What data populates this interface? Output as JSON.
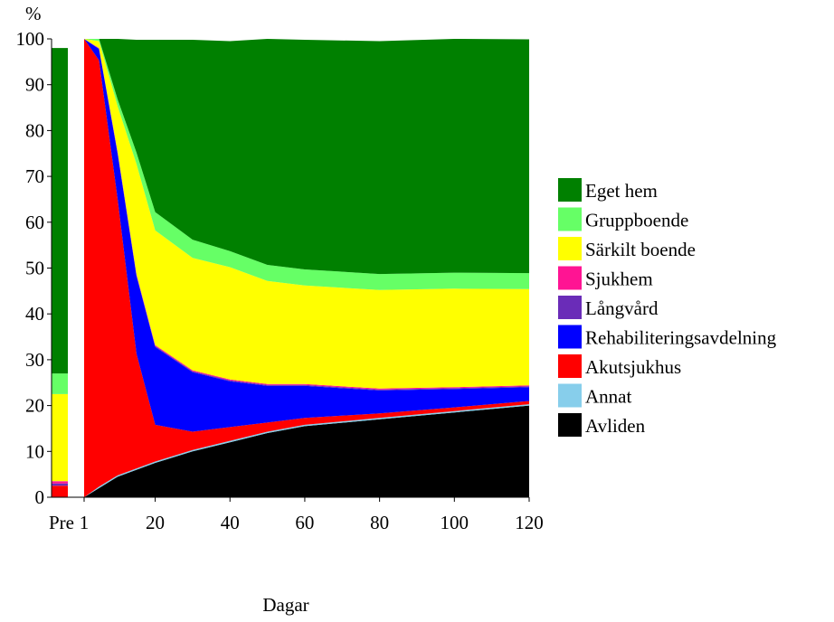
{
  "chart_data": {
    "type": "area",
    "stacked": true,
    "ylabel": "%",
    "xlabel": "Dagar",
    "ylim": [
      0,
      100
    ],
    "xlim": [
      1,
      120
    ],
    "yticks": [
      "0",
      "10",
      "20",
      "30",
      "40",
      "50",
      "60",
      "70",
      "80",
      "90",
      "100"
    ],
    "xticks": [
      "1",
      "20",
      "40",
      "60",
      "80",
      "100",
      "120"
    ],
    "pre_label": "Pre",
    "legend_position": "right",
    "series": [
      {
        "name": "Avliden",
        "color": "#000000",
        "pre": 0,
        "x": [
          1,
          5,
          10,
          15,
          20,
          30,
          40,
          50,
          60,
          80,
          100,
          120
        ],
        "values": [
          0,
          2,
          4.5,
          6,
          7.5,
          10,
          12,
          14,
          15.5,
          17,
          18.5,
          20
        ]
      },
      {
        "name": "Annat",
        "color": "#87ceeb",
        "pre": 0,
        "x": [
          1,
          5,
          10,
          15,
          20,
          30,
          40,
          50,
          60,
          80,
          100,
          120
        ],
        "values": [
          0,
          0.3,
          0.3,
          0.3,
          0.3,
          0.3,
          0.3,
          0.3,
          0.3,
          0.3,
          0.3,
          0.3
        ]
      },
      {
        "name": "Akutsjukhus",
        "color": "#ff0000",
        "pre": 2.5,
        "x": [
          1,
          5,
          10,
          15,
          20,
          30,
          40,
          50,
          60,
          80,
          100,
          120
        ],
        "values": [
          100,
          93,
          60,
          25,
          8,
          4,
          3,
          2,
          1.5,
          1,
          0.8,
          0.7
        ]
      },
      {
        "name": "Rehabiliteringsavdelning",
        "color": "#0000ff",
        "pre": 0,
        "x": [
          1,
          5,
          10,
          15,
          20,
          30,
          40,
          50,
          60,
          80,
          100,
          120
        ],
        "values": [
          0,
          2.5,
          10,
          17,
          17,
          13,
          10,
          8,
          7,
          5,
          4,
          3
        ]
      },
      {
        "name": "Långvård",
        "color": "#6a2cb8",
        "pre": 0.5,
        "x": [
          1,
          5,
          10,
          15,
          20,
          30,
          40,
          50,
          60,
          80,
          100,
          120
        ],
        "values": [
          0,
          0.1,
          0.2,
          0.2,
          0.2,
          0.2,
          0.2,
          0.2,
          0.2,
          0.2,
          0.2,
          0.2
        ]
      },
      {
        "name": "Sjukhem",
        "color": "#ff1493",
        "pre": 0.5,
        "x": [
          1,
          5,
          10,
          15,
          20,
          30,
          40,
          50,
          60,
          80,
          100,
          120
        ],
        "values": [
          0,
          0.1,
          0.2,
          0.2,
          0.2,
          0.2,
          0.2,
          0.2,
          0.2,
          0.2,
          0.2,
          0.2
        ]
      },
      {
        "name": "Särkilt boende",
        "color": "#ffff00",
        "pre": 19,
        "x": [
          1,
          5,
          10,
          15,
          20,
          30,
          40,
          50,
          60,
          80,
          100,
          120
        ],
        "values": [
          0,
          1.5,
          10,
          24,
          25,
          24.5,
          24.5,
          22.5,
          21.5,
          21.5,
          21.5,
          21
        ]
      },
      {
        "name": "Gruppboende",
        "color": "#66ff66",
        "pre": 4.5,
        "x": [
          1,
          5,
          10,
          15,
          20,
          30,
          40,
          50,
          60,
          80,
          100,
          120
        ],
        "values": [
          0,
          0.5,
          1.5,
          2.5,
          4,
          4,
          3.5,
          3.5,
          3.5,
          3.5,
          3.5,
          3.5
        ]
      },
      {
        "name": "Eget hem",
        "color": "#008000",
        "pre": 71,
        "x": [
          1,
          5,
          10,
          15,
          20,
          30,
          40,
          50,
          60,
          80,
          100,
          120
        ],
        "values": [
          0,
          0.0,
          13.3,
          24.6,
          37.6,
          43.6,
          45.8,
          49.3,
          50.1,
          50.8,
          51.0,
          51.0
        ]
      }
    ],
    "legend_order": [
      "Eget hem",
      "Gruppboende",
      "Särkilt boende",
      "Sjukhem",
      "Långvård",
      "Rehabiliteringsavdelning",
      "Akutsjukhus",
      "Annat",
      "Avliden"
    ]
  }
}
